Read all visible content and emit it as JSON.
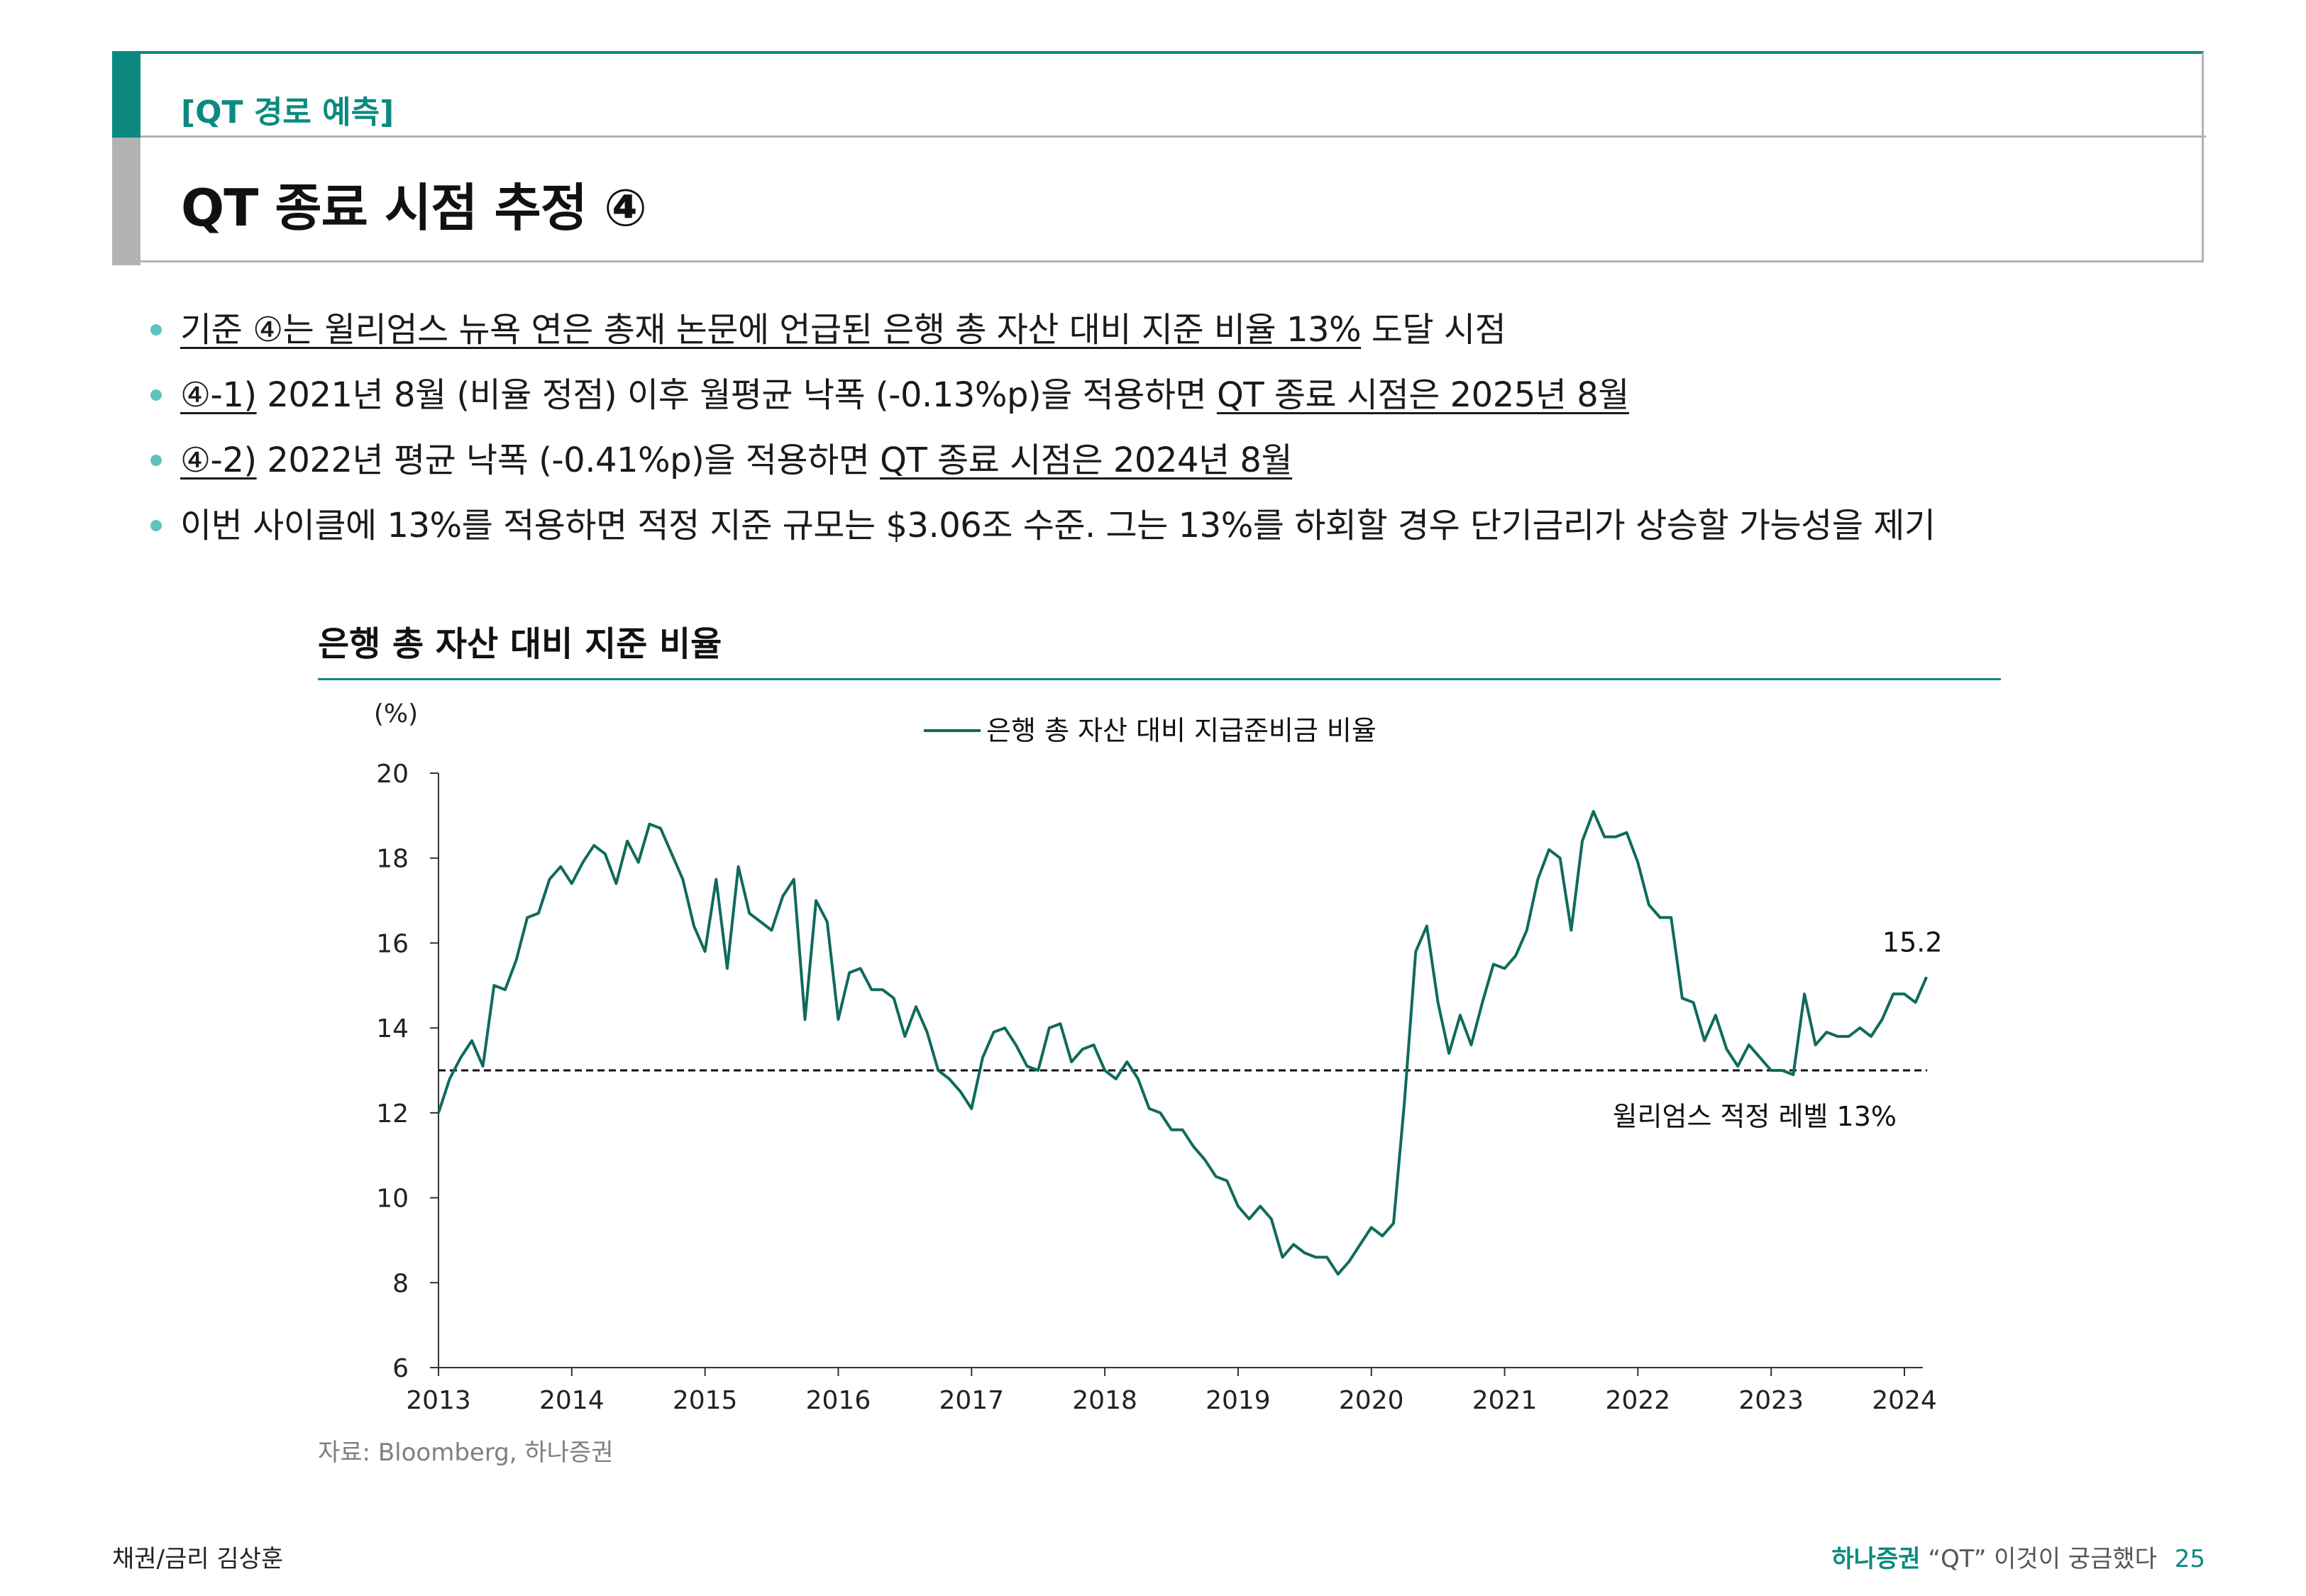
{
  "header": {
    "section_tag": "[QT 경로 예측]",
    "title": "QT 종료 시점 추정 ④"
  },
  "bullets": [
    {
      "parts": [
        {
          "t": "기준 ④는 윌리엄스 뉴욕 연은 총재 논문에 언급된 은행 총 자산 대비 지준 비율 13%",
          "u": true
        },
        {
          "t": " 도달 시점",
          "u": false
        }
      ]
    },
    {
      "parts": [
        {
          "t": "④-1)",
          "u": true
        },
        {
          "t": " 2021년 8월 (비율 정점) 이후 월평균 낙폭 (-0.13%p)을 적용하면 ",
          "u": false
        },
        {
          "t": "QT 종료 시점은 2025년 8월",
          "u": true
        }
      ]
    },
    {
      "parts": [
        {
          "t": "④-2)",
          "u": true
        },
        {
          "t": " 2022년 평균 낙폭 (-0.41%p)을 적용하면 ",
          "u": false
        },
        {
          "t": "QT 종료 시점은 2024년 8월",
          "u": true
        }
      ]
    },
    {
      "parts": [
        {
          "t": "이번 사이클에 13%를 적용하면 적정 지준 규모는 $3.06조 수준. 그는 13%를 하회할 경우 단기금리가 상승할 가능성을 제기",
          "u": false
        }
      ]
    }
  ],
  "chart_title": "은행 총 자산 대비 지준 비율",
  "source": "자료: Bloomberg, 하나증권",
  "footer": {
    "left": "채권/금리 김상훈",
    "brand": "하나증권",
    "series_title": "“QT” 이것이 궁금했다",
    "page": "25"
  },
  "colors": {
    "accent": "#0c8a80",
    "line": "#0f6b5c",
    "bullet_dot": "#5bc4bf"
  },
  "chart_data": {
    "type": "line",
    "ylabel": "(%)",
    "ylim": [
      6,
      20
    ],
    "yticks": [
      "20",
      "18",
      "16",
      "14",
      "12",
      "10",
      "8",
      "6"
    ],
    "xlim": [
      2013.0,
      2024.15
    ],
    "xticks": [
      "2013",
      "2014",
      "2015",
      "2016",
      "2017",
      "2018",
      "2019",
      "2020",
      "2021",
      "2022",
      "2023",
      "2024"
    ],
    "grid": false,
    "legend_position": "top-center",
    "series": [
      {
        "name": "은행 총 자산 대비 지급준비금 비율",
        "x_start": 2013.0,
        "x_step": 0.08333,
        "values": [
          12.0,
          12.8,
          13.3,
          13.7,
          13.1,
          15.0,
          14.9,
          15.6,
          16.6,
          16.7,
          17.5,
          17.8,
          17.4,
          17.9,
          18.3,
          18.1,
          17.4,
          18.4,
          17.9,
          18.8,
          18.7,
          18.1,
          17.5,
          16.4,
          15.8,
          17.5,
          15.4,
          17.8,
          16.7,
          16.5,
          16.3,
          17.1,
          17.5,
          14.2,
          17.0,
          16.5,
          14.2,
          15.3,
          15.4,
          14.9,
          14.9,
          14.7,
          13.8,
          14.5,
          13.9,
          13.0,
          12.8,
          12.5,
          12.1,
          13.3,
          13.9,
          14.0,
          13.6,
          13.1,
          13.0,
          14.0,
          14.1,
          13.2,
          13.5,
          13.6,
          13.0,
          12.8,
          13.2,
          12.8,
          12.1,
          12.0,
          11.6,
          11.6,
          11.2,
          10.9,
          10.5,
          10.4,
          9.8,
          9.5,
          9.8,
          9.5,
          8.6,
          8.9,
          8.7,
          8.6,
          8.6,
          8.2,
          8.5,
          8.9,
          9.3,
          9.1,
          9.4,
          12.3,
          15.8,
          16.4,
          14.6,
          13.4,
          14.3,
          13.6,
          14.6,
          15.5,
          15.4,
          15.7,
          16.3,
          17.5,
          18.2,
          18.0,
          16.3,
          18.4,
          19.1,
          18.5,
          18.5,
          18.6,
          17.9,
          16.9,
          16.6,
          16.6,
          14.7,
          14.6,
          13.7,
          14.3,
          13.5,
          13.1,
          13.6,
          13.3,
          13.0,
          13.0,
          12.9,
          14.8,
          13.6,
          13.9,
          13.8,
          13.8,
          14.0,
          13.8,
          14.2,
          14.8,
          14.8,
          14.6,
          15.2
        ]
      }
    ],
    "annotations": [
      {
        "type": "hline",
        "y": 13.0,
        "style": "dashed",
        "label": "윌리엄스 적정 레벨 13%"
      },
      {
        "type": "end_label",
        "text": "15.2"
      }
    ]
  }
}
